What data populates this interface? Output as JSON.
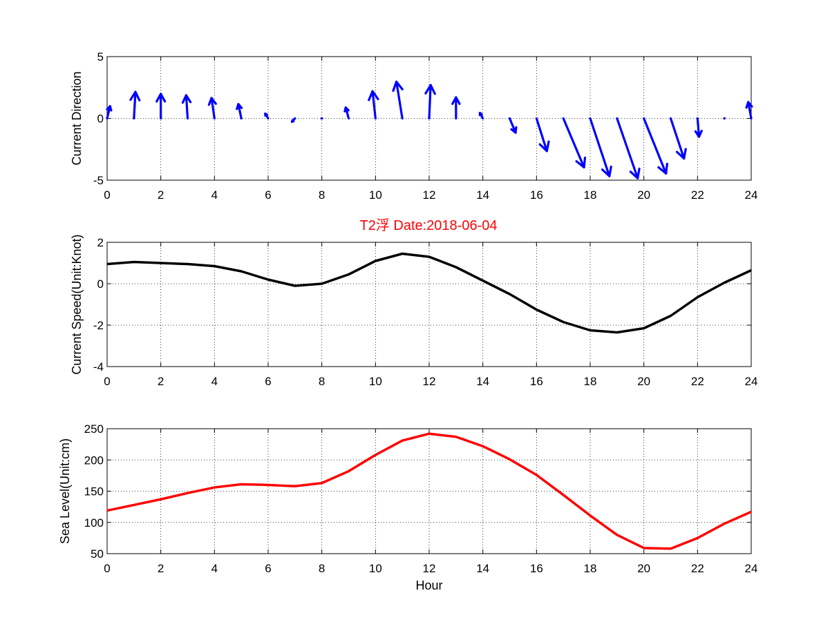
{
  "title": "T2浮    Date:2018-06-04",
  "colors": {
    "title": "#ff0000",
    "direction": "#0000ff",
    "speed": "#000000",
    "sea_level": "#ff0000"
  },
  "chart_data": [
    {
      "type": "quiver",
      "ylabel": "Current Direction",
      "xlim": [
        0,
        24
      ],
      "ylim": [
        -5,
        5
      ],
      "xticks": [
        "0",
        "2",
        "4",
        "6",
        "8",
        "10",
        "12",
        "14",
        "16",
        "18",
        "20",
        "22",
        "24"
      ],
      "yticks": [
        "-5",
        "0",
        "5"
      ],
      "grid": true,
      "series": [
        {
          "x": [
            0,
            1,
            2,
            3,
            4,
            5,
            6,
            7,
            8,
            9,
            10,
            11,
            12,
            13,
            14,
            15,
            16,
            17,
            18,
            19,
            20,
            21,
            22,
            23,
            24
          ],
          "u": [
            0.1,
            0.05,
            0.0,
            -0.05,
            -0.1,
            -0.1,
            -0.1,
            -0.1,
            0.0,
            -0.1,
            -0.1,
            -0.2,
            0.05,
            0.0,
            -0.1,
            0.2,
            0.35,
            0.7,
            0.65,
            0.7,
            0.75,
            0.45,
            0.05,
            -0.05,
            -0.1
          ],
          "v": [
            0.9,
            1.95,
            1.8,
            1.7,
            1.5,
            1.05,
            0.35,
            -0.25,
            0.0,
            0.8,
            2.0,
            2.7,
            2.45,
            1.55,
            0.4,
            -1.05,
            -2.4,
            -3.6,
            -4.25,
            -4.4,
            -4.05,
            -2.95,
            -1.35,
            -0.1,
            1.2
          ]
        }
      ]
    },
    {
      "type": "line",
      "ylabel": "Current Speed(Unit:Knot)",
      "xlim": [
        0,
        24
      ],
      "ylim": [
        -4,
        2
      ],
      "xticks": [
        "0",
        "2",
        "4",
        "6",
        "8",
        "10",
        "12",
        "14",
        "16",
        "18",
        "20",
        "22",
        "24"
      ],
      "yticks": [
        "-4",
        "-2",
        "0",
        "2"
      ],
      "grid": true,
      "series": [
        {
          "x": [
            0,
            1,
            2,
            3,
            4,
            5,
            6,
            7,
            8,
            9,
            10,
            11,
            12,
            13,
            14,
            15,
            16,
            17,
            18,
            19,
            20,
            21,
            22,
            23,
            24
          ],
          "y": [
            0.95,
            1.05,
            1.0,
            0.95,
            0.85,
            0.6,
            0.2,
            -0.1,
            0.0,
            0.45,
            1.1,
            1.45,
            1.3,
            0.8,
            0.15,
            -0.5,
            -1.25,
            -1.85,
            -2.25,
            -2.35,
            -2.15,
            -1.55,
            -0.65,
            0.05,
            0.65
          ]
        }
      ]
    },
    {
      "type": "line",
      "xlabel": "Hour",
      "ylabel": "Sea Level(Unit:cm)",
      "xlim": [
        0,
        24
      ],
      "ylim": [
        50,
        250
      ],
      "xticks": [
        "0",
        "2",
        "4",
        "6",
        "8",
        "10",
        "12",
        "14",
        "16",
        "18",
        "20",
        "22",
        "24"
      ],
      "yticks": [
        "50",
        "100",
        "150",
        "200",
        "250"
      ],
      "grid": true,
      "series": [
        {
          "x": [
            0,
            1,
            2,
            3,
            4,
            5,
            6,
            7,
            8,
            9,
            10,
            11,
            12,
            13,
            14,
            15,
            16,
            17,
            18,
            19,
            20,
            21,
            22,
            23,
            24
          ],
          "y": [
            119,
            128,
            137,
            147,
            156,
            161,
            160,
            158,
            163,
            182,
            208,
            231,
            242,
            237,
            222,
            201,
            176,
            144,
            111,
            80,
            59,
            58,
            75,
            98,
            117
          ]
        }
      ]
    }
  ]
}
